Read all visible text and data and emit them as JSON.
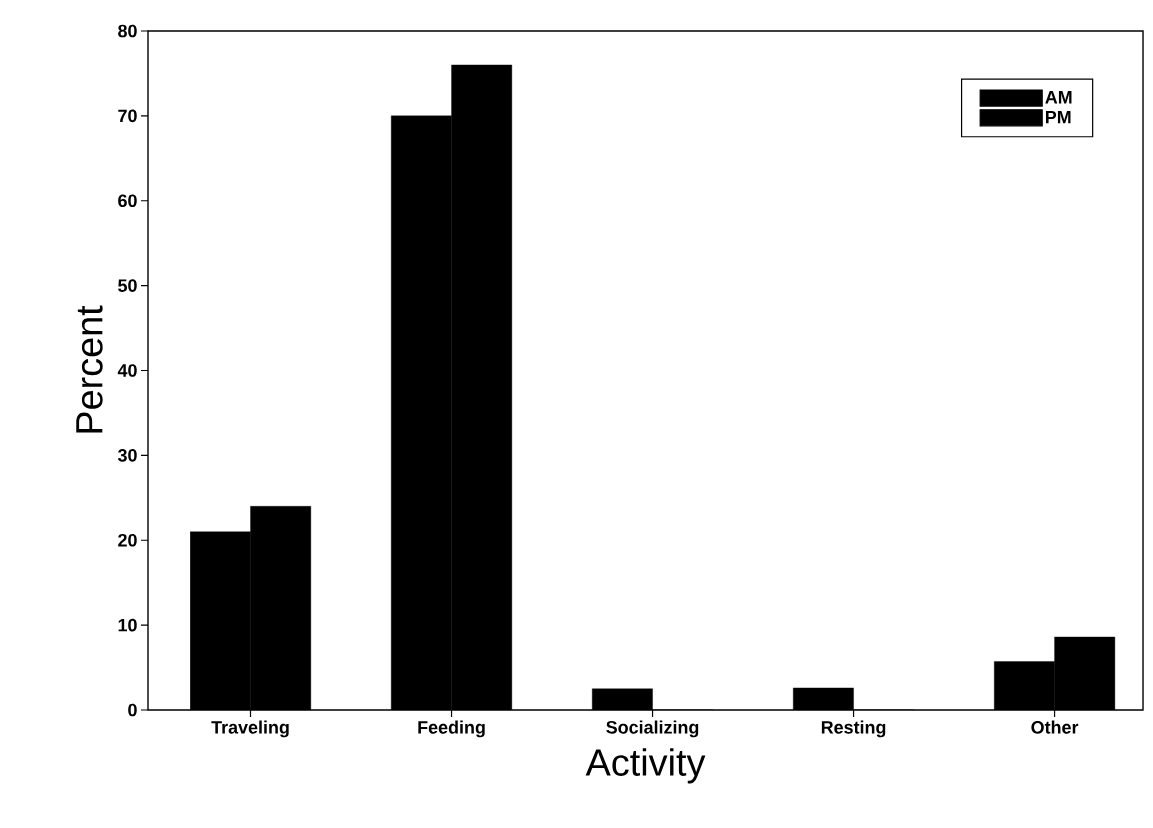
{
  "chart_data": {
    "type": "bar",
    "xlabel": "Activity",
    "ylabel": "Percent",
    "categories": [
      "Traveling",
      "Feeding",
      "Socializing",
      "Resting",
      "Other"
    ],
    "series": [
      {
        "name": "AM",
        "color": "#000000",
        "values": [
          21,
          70,
          2.5,
          2.6,
          5.7
        ]
      },
      {
        "name": "PM",
        "color": "#000000",
        "values": [
          24,
          76,
          0,
          0,
          8.6
        ]
      }
    ],
    "ylim": [
      0,
      80
    ],
    "yticks": [
      0,
      10,
      20,
      30,
      40,
      50,
      60,
      70,
      80
    ],
    "legend": "top right"
  }
}
